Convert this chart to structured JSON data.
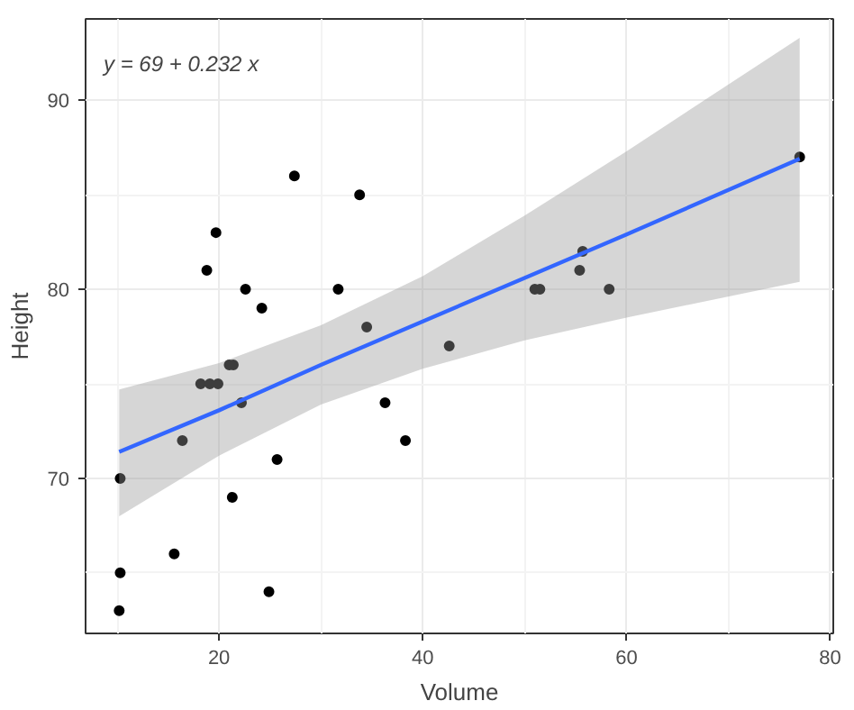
{
  "chart_data": {
    "type": "scatter",
    "xlabel": "Volume",
    "ylabel": "Height",
    "annotations": [
      "y = 69 + 0.232 x"
    ],
    "xlim": [
      6.9,
      80.3
    ],
    "ylim": [
      61.8,
      94.3
    ],
    "xticks": [
      20,
      40,
      60,
      80
    ],
    "yticks": [
      70,
      80,
      90
    ],
    "grid": true,
    "series": [
      {
        "color": "#000000",
        "marker": "circle",
        "x": [
          10.3,
          10.3,
          10.2,
          16.4,
          18.8,
          19.7,
          15.6,
          18.2,
          22.6,
          19.9,
          24.2,
          21.0,
          21.4,
          21.3,
          19.1,
          22.2,
          33.8,
          27.4,
          25.7,
          24.9,
          34.5,
          31.7,
          36.3,
          38.3,
          42.6,
          55.4,
          55.7,
          58.3,
          51.5,
          51.0,
          77.0
        ],
        "values": [
          70,
          65,
          63,
          72,
          81,
          83,
          66,
          75,
          80,
          75,
          79,
          76,
          76,
          69,
          75,
          74,
          85,
          86,
          71,
          64,
          78,
          80,
          74,
          72,
          77,
          81,
          82,
          80,
          80,
          80,
          87
        ]
      },
      {
        "type": "line",
        "color": "#3366ff",
        "line_style": "solid",
        "x": [
          10.2,
          20,
          30,
          40,
          50,
          60,
          77
        ],
        "values": [
          71.4,
          73.6,
          76.0,
          78.3,
          80.6,
          82.9,
          86.9
        ],
        "lower": [
          68.0,
          71.2,
          73.9,
          75.8,
          77.3,
          78.5,
          80.4
        ],
        "upper": [
          74.7,
          76.1,
          78.1,
          80.7,
          83.9,
          87.3,
          93.3
        ]
      }
    ]
  }
}
